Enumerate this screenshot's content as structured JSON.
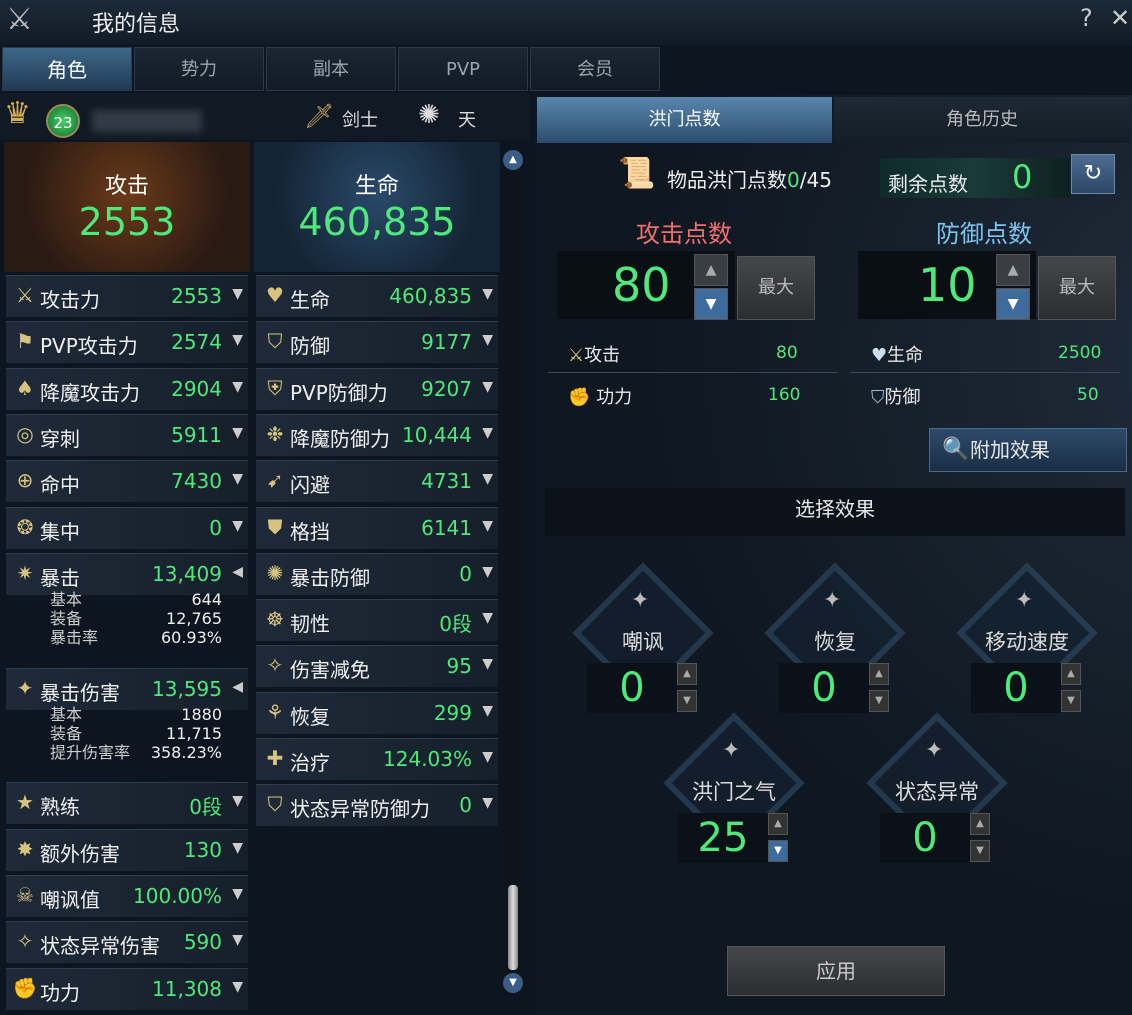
{
  "window": {
    "title": "我的信息",
    "help": "?",
    "close": "✕"
  },
  "tabs": [
    {
      "label": "角色",
      "active": true
    },
    {
      "label": "势力"
    },
    {
      "label": "副本"
    },
    {
      "label": "PVP"
    },
    {
      "label": "会员"
    }
  ],
  "character": {
    "level": "23",
    "class": "剑士",
    "element": "天"
  },
  "summary": {
    "attack_label": "攻击",
    "attack_value": "2553",
    "hp_label": "生命",
    "hp_value": "460,835"
  },
  "left_stats": [
    {
      "icon": "crossed-swords",
      "name": "攻击力",
      "value": "2553"
    },
    {
      "icon": "pvp-attack",
      "name": "PVP攻击力",
      "value": "2574"
    },
    {
      "icon": "demon-attack",
      "name": "降魔攻击力",
      "value": "2904"
    },
    {
      "icon": "pierce",
      "name": "穿刺",
      "value": "5911"
    },
    {
      "icon": "target",
      "name": "命中",
      "value": "7430"
    },
    {
      "icon": "focus",
      "name": "集中",
      "value": "0"
    },
    {
      "icon": "critical",
      "name": "暴击",
      "value": "13,409",
      "expanded": true,
      "details": [
        {
          "k": "基本",
          "v": "644"
        },
        {
          "k": "装备",
          "v": "12,765"
        },
        {
          "k": "暴击率",
          "v": "60.93%"
        }
      ]
    },
    {
      "icon": "critical-damage",
      "name": "暴击伤害",
      "value": "13,595",
      "expanded": true,
      "details": [
        {
          "k": "基本",
          "v": "1880"
        },
        {
          "k": "装备",
          "v": "11,715"
        },
        {
          "k": "提升伤害率",
          "v": "358.23%"
        }
      ]
    },
    {
      "icon": "mastery",
      "name": "熟练",
      "value": "0段"
    },
    {
      "icon": "extra-damage",
      "name": "额外伤害",
      "value": "130"
    },
    {
      "icon": "skull",
      "name": "嘲讽值",
      "value": "100.00%"
    },
    {
      "icon": "status-damage",
      "name": "状态异常伤害",
      "value": "590"
    },
    {
      "icon": "fist",
      "name": "功力",
      "value": "11,308"
    }
  ],
  "mid_stats": [
    {
      "icon": "heart",
      "name": "生命",
      "value": "460,835"
    },
    {
      "icon": "shield",
      "name": "防御",
      "value": "9177"
    },
    {
      "icon": "pvp-defense",
      "name": "PVP防御力",
      "value": "9207"
    },
    {
      "icon": "demon-defense",
      "name": "降魔防御力",
      "value": "10,444"
    },
    {
      "icon": "evade",
      "name": "闪避",
      "value": "4731"
    },
    {
      "icon": "block",
      "name": "格挡",
      "value": "6141"
    },
    {
      "icon": "crit-defense",
      "name": "暴击防御",
      "value": "0"
    },
    {
      "icon": "toughness",
      "name": "韧性",
      "value": "0段"
    },
    {
      "icon": "damage-reduction",
      "name": "伤害减免",
      "value": "95"
    },
    {
      "icon": "sprout",
      "name": "恢复",
      "value": "299"
    },
    {
      "icon": "heal",
      "name": "治疗",
      "value": "124.03%"
    },
    {
      "icon": "status-defense",
      "name": "状态异常防御力",
      "value": "0"
    }
  ],
  "right": {
    "tabs": [
      {
        "label": "洪门点数",
        "active": true
      },
      {
        "label": "角色历史"
      }
    ],
    "item_points_label": "物品洪门点数",
    "item_points_used": "0",
    "item_points_total": "/45",
    "remaining_label": "剩余点数",
    "remaining_value": "0",
    "attack_title": "攻击点数",
    "attack_points": "80",
    "defense_title": "防御点数",
    "defense_points": "10",
    "max_label": "最大",
    "attack_bonus": [
      {
        "name": "攻击",
        "value": "80"
      },
      {
        "name": "功力",
        "value": "160"
      }
    ],
    "defense_bonus": [
      {
        "name": "生命",
        "value": "2500"
      },
      {
        "name": "防御",
        "value": "50"
      }
    ],
    "extra_effect_label": "附加效果",
    "select_effect_title": "选择效果",
    "effects": [
      {
        "name": "嘲讽",
        "value": "0"
      },
      {
        "name": "恢复",
        "value": "0"
      },
      {
        "name": "移动速度",
        "value": "0"
      },
      {
        "name": "洪门之气",
        "value": "25"
      },
      {
        "name": "状态异常",
        "value": "0"
      }
    ],
    "apply_label": "应用"
  },
  "colors": {
    "value_green": "#4fe87a",
    "attack_title": "#f07070",
    "defense_title": "#7cc4f0",
    "active_tab": "#3e6788"
  }
}
